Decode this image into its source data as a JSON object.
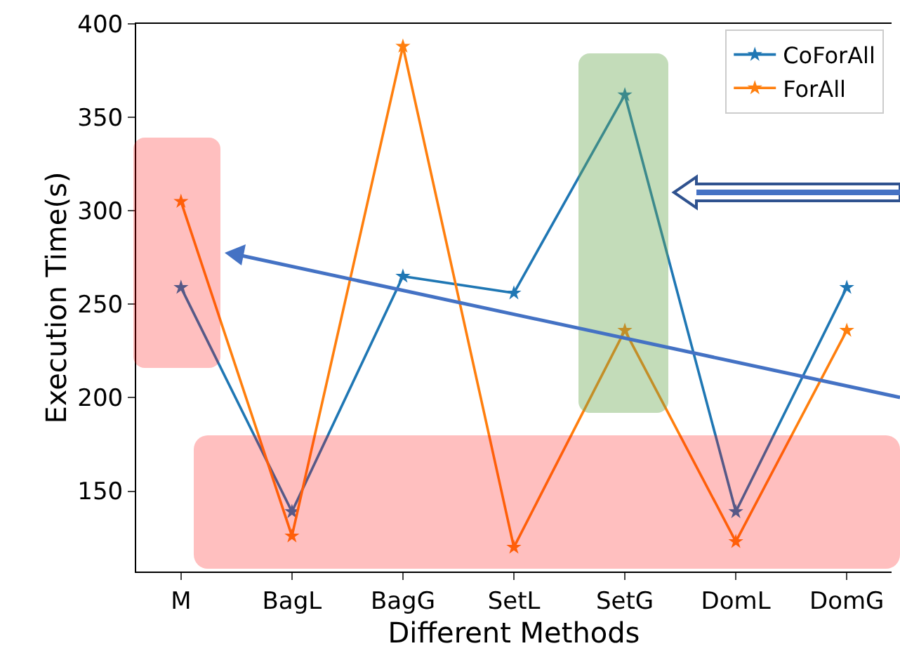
{
  "chart_data": {
    "type": "line",
    "xlabel": "Different Methods",
    "ylabel": "Execution Time(s)",
    "categories": [
      "M",
      "BagL",
      "BagG",
      "SetL",
      "SetG",
      "DomL",
      "DomG"
    ],
    "series": [
      {
        "name": "CoForAll",
        "color": "#1f77b4",
        "values": [
          259,
          139,
          265,
          256,
          362,
          139,
          259
        ]
      },
      {
        "name": "ForAll",
        "color": "#ff7f0e",
        "values": [
          305,
          126,
          388,
          120,
          236,
          123,
          236
        ]
      }
    ],
    "ylim": [
      107,
      400
    ],
    "yticks": [
      150,
      200,
      250,
      300,
      350,
      400
    ],
    "grid": false,
    "legend": "top right",
    "marker": "star",
    "line_style": "solid"
  }
}
